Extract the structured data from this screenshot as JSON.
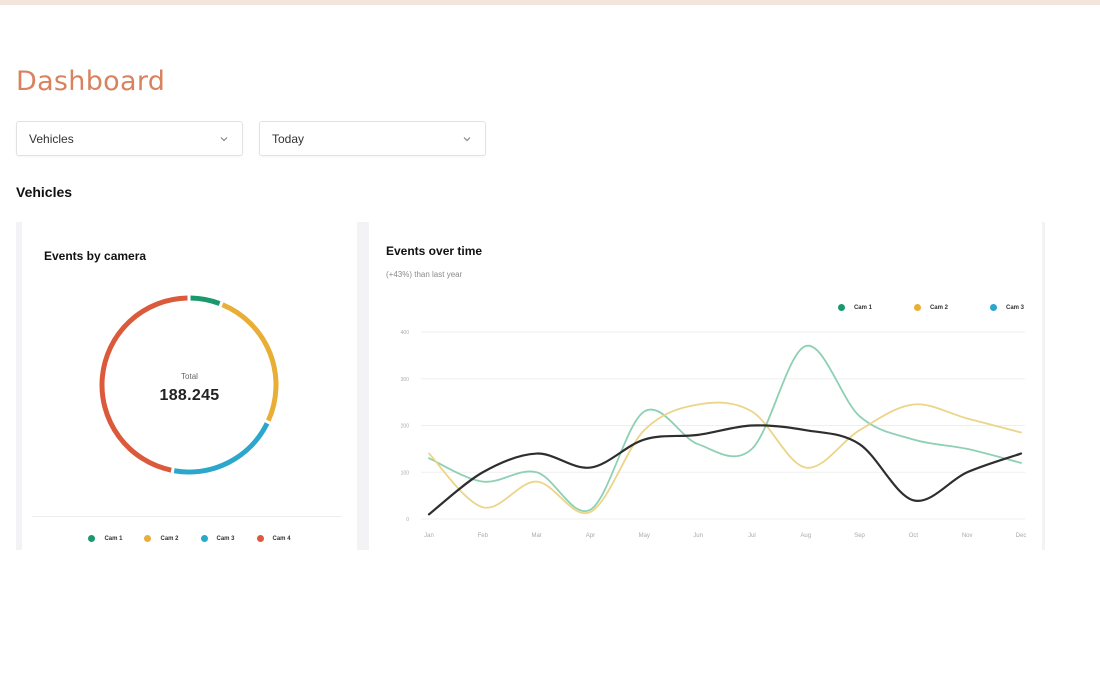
{
  "header": {
    "title": "Dashboard"
  },
  "filters": {
    "category": {
      "value": "Vehicles"
    },
    "period": {
      "value": "Today"
    }
  },
  "section": {
    "title": "Vehicles"
  },
  "colors": {
    "accent": "#d9825f",
    "cam1": "#1a9a6c",
    "cam2": "#e8ae35",
    "cam3": "#2ba7cc",
    "cam4": "#dc5a3c"
  },
  "icons": {
    "dropdown": "chevron-down-icon"
  },
  "chart_data": [
    {
      "type": "pie",
      "title": "Events by camera",
      "center_label": "Total",
      "center_value": "188.245",
      "labels": [
        "Cam 1",
        "Cam 2",
        "Cam 3",
        "Cam 4"
      ],
      "values": [
        6,
        26,
        21,
        47
      ],
      "colors": [
        "#1a9a6c",
        "#e8ae35",
        "#2ba7cc",
        "#dc5a3c"
      ],
      "legend": "bottom"
    },
    {
      "type": "line",
      "title": "Events over time",
      "subtitle": "(+43%) than last year",
      "categories": [
        "Jan",
        "Feb",
        "Mar",
        "Apr",
        "May",
        "Jun",
        "Jul",
        "Aug",
        "Sep",
        "Oct",
        "Nov",
        "Dec"
      ],
      "ylim": [
        0,
        400
      ],
      "yticks": [
        0,
        100,
        200,
        300,
        400
      ],
      "series": [
        {
          "name": "Cam 1",
          "color": "#8ed0b3",
          "values": [
            130,
            80,
            100,
            20,
            230,
            160,
            150,
            370,
            220,
            170,
            150,
            120
          ]
        },
        {
          "name": "Cam 2",
          "color": "#ecd488",
          "values": [
            140,
            25,
            80,
            15,
            190,
            245,
            230,
            110,
            190,
            245,
            215,
            185
          ]
        },
        {
          "name": "Cam 3",
          "color": "#2e2e2e",
          "values": [
            10,
            100,
            140,
            110,
            170,
            180,
            200,
            190,
            160,
            40,
            100,
            140
          ]
        }
      ],
      "legend": "top-right",
      "grid": true
    }
  ]
}
